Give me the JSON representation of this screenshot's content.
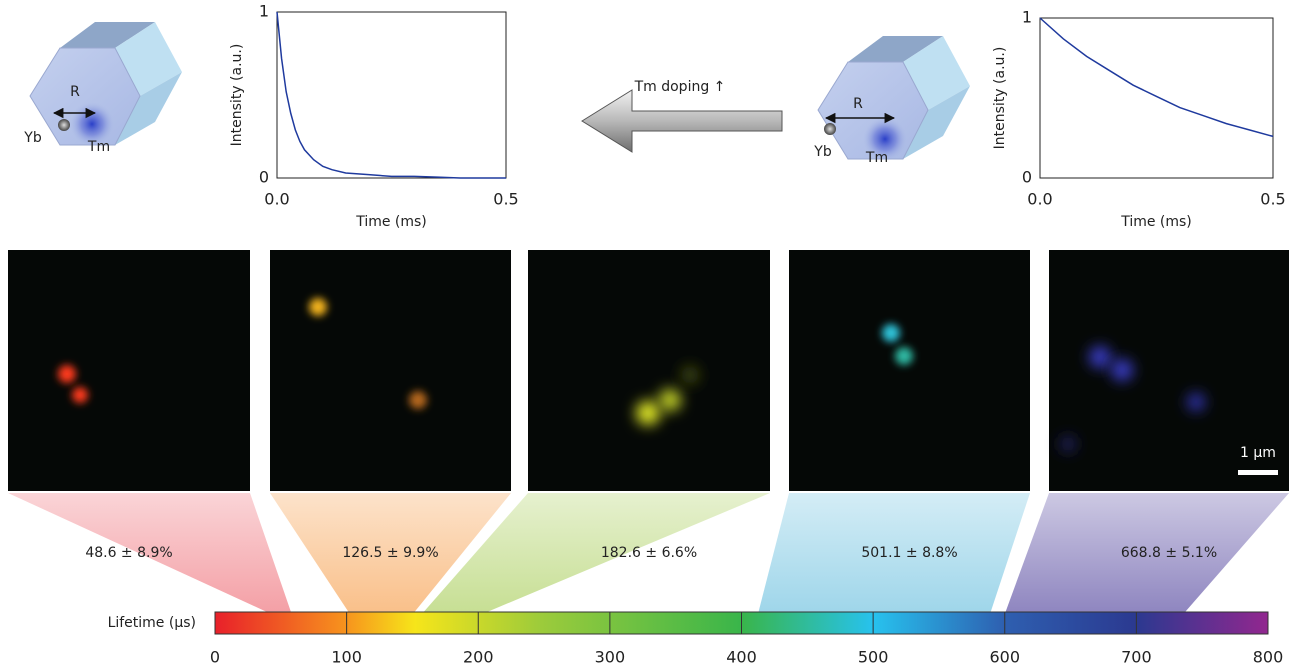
{
  "chart_data": [
    {
      "type": "line",
      "xlabel": "Time (ms)",
      "ylabel": "Intensity (a.u.)",
      "x": [
        0,
        0.01,
        0.02,
        0.03,
        0.04,
        0.05,
        0.06,
        0.08,
        0.1,
        0.12,
        0.15,
        0.2,
        0.25,
        0.3,
        0.35,
        0.4,
        0.45,
        0.5
      ],
      "series": [
        {
          "color": "#1f3a9e",
          "values": [
            1,
            0.72,
            0.52,
            0.39,
            0.29,
            0.22,
            0.17,
            0.11,
            0.07,
            0.05,
            0.03,
            0.02,
            0.01,
            0.01,
            0.005,
            0,
            0,
            0
          ]
        }
      ],
      "xlim": [
        0,
        0.5
      ],
      "ylim": [
        0,
        1
      ],
      "xticks": [
        {
          "value": 0,
          "label": "0.0"
        },
        {
          "value": 0.5,
          "label": "0.5"
        }
      ],
      "yticks": [
        0,
        1
      ]
    },
    {
      "type": "line",
      "xlabel": "Time (ms)",
      "ylabel": "Intensity (a.u.)",
      "x": [
        0,
        0.05,
        0.1,
        0.15,
        0.2,
        0.25,
        0.3,
        0.35,
        0.4,
        0.45,
        0.5
      ],
      "series": [
        {
          "color": "#1f3a9e",
          "values": [
            1,
            0.87,
            0.76,
            0.67,
            0.58,
            0.51,
            0.44,
            0.39,
            0.34,
            0.3,
            0.26
          ]
        }
      ],
      "xlim": [
        0,
        0.5
      ],
      "ylim": [
        0,
        1
      ],
      "xticks": [
        {
          "value": 0,
          "label": "0.0"
        },
        {
          "value": 0.5,
          "label": "0.5"
        }
      ],
      "yticks": [
        0,
        1
      ]
    }
  ],
  "diagrams": [
    {
      "r": "R",
      "yb": "Yb",
      "tm": "Tm"
    },
    {
      "r": "R",
      "yb": "Yb",
      "tm": "Tm"
    }
  ],
  "arrow_label": "Tm doping ↑",
  "scale_bar": "1 μm",
  "lifetimes": {
    "values": [
      48.6,
      126.5,
      182.6,
      501.1,
      668.8
    ],
    "errors": [
      8.9,
      9.9,
      6.6,
      8.8,
      5.1
    ],
    "value_labels": [
      "48.6 ± 8.9%",
      "126.5 ± 9.9%",
      "182.6 ± 6.6%",
      "501.1 ± 8.8%",
      "668.8 ± 5.1%"
    ]
  },
  "colorbar": {
    "label": "Lifetime (μs)",
    "lim": [
      0,
      800
    ],
    "ticks": [
      0,
      100,
      200,
      300,
      400,
      500,
      600,
      700,
      800
    ]
  }
}
